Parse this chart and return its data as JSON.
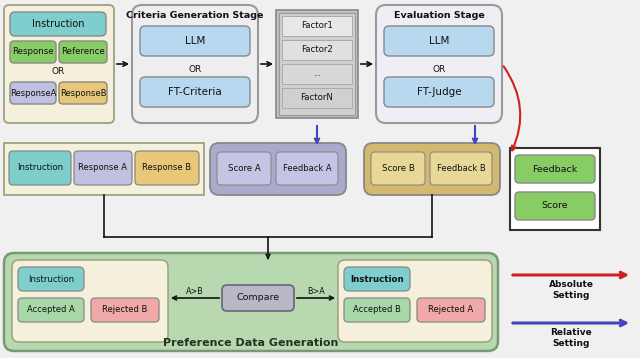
{
  "bg_color": "#f0f0f0",
  "fig_width": 6.4,
  "fig_height": 3.58,
  "colors": {
    "teal": "#7ecece",
    "green_light": "#88cc66",
    "yellow_cream": "#f5f0dc",
    "lavender": "#c0c0e0",
    "orange_light": "#e8c878",
    "blue_light": "#b8d8f0",
    "gray_light": "#d8d8d8",
    "gray_medium": "#b8b8b8",
    "pink_light": "#f0a8a8",
    "green_pale": "#a8d8a8",
    "box_border": "#888888",
    "arrow_blue": "#4444bb",
    "arrow_red": "#cc2222",
    "arrow_black": "#111111",
    "score_a_bg": "#aaaacc",
    "score_b_bg": "#d4b870",
    "pref_bg": "#b8d8b0",
    "compare_bg": "#b8b8c8",
    "eval_bg": "#eeeef4",
    "criteria_bg": "#eeeef0",
    "factor_outer": "#c0c0c0",
    "factor_inner": "#d4d4d4",
    "green_legend": "#88cc66",
    "feedback_box_bg": "#ffffff"
  },
  "title_pref": "Preference Data Generation",
  "title_criteria": "Criteria Generation Stage",
  "title_eval": "Evaluation Stage",
  "legend_abs": "Absolute\nSetting",
  "legend_rel": "Relative\nSetting"
}
